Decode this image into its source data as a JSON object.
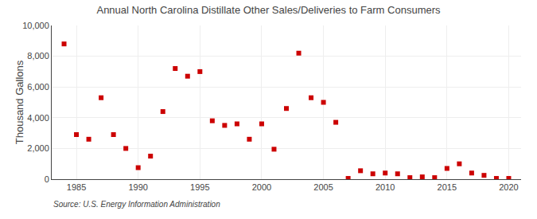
{
  "chart_data": {
    "type": "scatter",
    "title": "Annual North Carolina Distillate Other Sales/Deliveries to Farm Consumers",
    "ylabel": "Thousand Gallons",
    "annotations": [
      "Source: U.S. Energy Information Administration"
    ],
    "x": [
      1984,
      1985,
      1986,
      1987,
      1988,
      1989,
      1990,
      1991,
      1992,
      1993,
      1994,
      1995,
      1996,
      1997,
      1998,
      1999,
      2000,
      2001,
      2002,
      2003,
      2004,
      2005,
      2006,
      2007,
      2008,
      2009,
      2010,
      2011,
      2012,
      2013,
      2014,
      2015,
      2016,
      2017,
      2018,
      2019,
      2020
    ],
    "values": [
      8800,
      2900,
      2600,
      5300,
      2900,
      2000,
      750,
      1500,
      4400,
      7200,
      6700,
      7000,
      3800,
      3500,
      3600,
      2600,
      3600,
      1950,
      4600,
      8200,
      5300,
      5000,
      3700,
      50,
      550,
      350,
      400,
      350,
      100,
      150,
      100,
      700,
      1000,
      400,
      250,
      50,
      50
    ],
    "color": "#cc0000",
    "marker": "square",
    "xlim": [
      1983,
      2021
    ],
    "xticks": [
      1985,
      1990,
      1995,
      2000,
      2005,
      2010,
      2015,
      2020
    ],
    "ylim": [
      0,
      10000
    ],
    "yticks": [
      0,
      {
        "value": 2000,
        "label": "2,000"
      },
      {
        "value": 4000,
        "label": "4,000"
      },
      {
        "value": 6000,
        "label": "6,000"
      },
      {
        "value": 8000,
        "label": "8,000"
      },
      {
        "value": 10000,
        "label": "10,000"
      }
    ],
    "grid": true
  }
}
